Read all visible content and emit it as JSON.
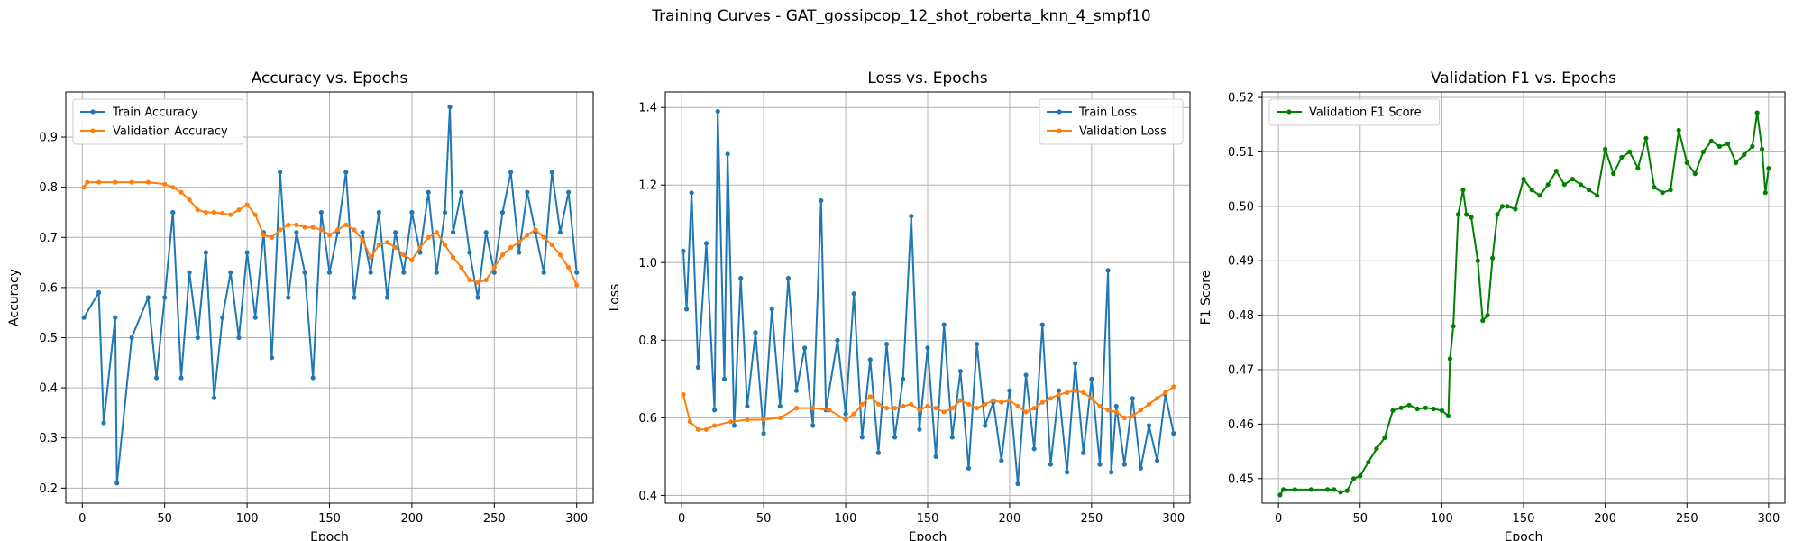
{
  "figure": {
    "suptitle": "Training Curves - GAT_gossipcop_12_shot_roberta_knn_4_smpf10"
  },
  "colors": {
    "train": "#1f77b4",
    "validation": "#ff7f0e",
    "f1": "#008000",
    "grid": "#b0b0b0"
  },
  "chart_data": [
    {
      "type": "line",
      "title": "Accuracy vs. Epochs",
      "xlabel": "Epoch",
      "ylabel": "Accuracy",
      "xlim": [
        -10,
        310
      ],
      "ylim": [
        0.17,
        0.99
      ],
      "xticks": [
        0,
        50,
        100,
        150,
        200,
        250,
        300
      ],
      "yticks": [
        0.2,
        0.3,
        0.4,
        0.5,
        0.6,
        0.7,
        0.8,
        0.9
      ],
      "grid": true,
      "legend": "upper-left",
      "series": [
        {
          "name": "Train Accuracy",
          "color_key": "train",
          "x": [
            1,
            10,
            13,
            20,
            21,
            30,
            40,
            45,
            50,
            55,
            60,
            65,
            70,
            75,
            80,
            85,
            90,
            95,
            100,
            105,
            110,
            115,
            120,
            125,
            130,
            135,
            140,
            145,
            150,
            155,
            160,
            165,
            170,
            175,
            180,
            185,
            190,
            195,
            200,
            205,
            210,
            215,
            220,
            223,
            225,
            230,
            235,
            240,
            245,
            250,
            255,
            260,
            265,
            270,
            275,
            280,
            285,
            290,
            295,
            300
          ],
          "values": [
            0.54,
            0.59,
            0.33,
            0.54,
            0.21,
            0.5,
            0.58,
            0.42,
            0.58,
            0.75,
            0.42,
            0.63,
            0.5,
            0.67,
            0.38,
            0.54,
            0.63,
            0.5,
            0.67,
            0.54,
            0.71,
            0.46,
            0.83,
            0.58,
            0.71,
            0.63,
            0.42,
            0.75,
            0.63,
            0.71,
            0.83,
            0.58,
            0.71,
            0.63,
            0.75,
            0.58,
            0.71,
            0.63,
            0.75,
            0.67,
            0.79,
            0.63,
            0.75,
            0.96,
            0.71,
            0.79,
            0.67,
            0.58,
            0.71,
            0.63,
            0.75,
            0.83,
            0.67,
            0.79,
            0.71,
            0.63,
            0.83,
            0.71,
            0.79,
            0.63
          ]
        },
        {
          "name": "Validation Accuracy",
          "color_key": "validation",
          "x": [
            1,
            3,
            10,
            20,
            30,
            40,
            50,
            55,
            60,
            65,
            70,
            75,
            80,
            85,
            90,
            95,
            100,
            105,
            110,
            115,
            120,
            125,
            130,
            135,
            140,
            145,
            150,
            155,
            160,
            165,
            170,
            175,
            180,
            185,
            190,
            195,
            200,
            205,
            210,
            215,
            220,
            225,
            230,
            235,
            240,
            245,
            250,
            255,
            260,
            265,
            270,
            275,
            280,
            285,
            290,
            295,
            300
          ],
          "values": [
            0.8,
            0.81,
            0.81,
            0.81,
            0.81,
            0.81,
            0.806,
            0.8,
            0.79,
            0.775,
            0.755,
            0.75,
            0.75,
            0.748,
            0.745,
            0.755,
            0.765,
            0.745,
            0.705,
            0.7,
            0.715,
            0.725,
            0.725,
            0.72,
            0.72,
            0.715,
            0.705,
            0.715,
            0.725,
            0.715,
            0.695,
            0.66,
            0.685,
            0.69,
            0.68,
            0.665,
            0.655,
            0.68,
            0.7,
            0.71,
            0.685,
            0.66,
            0.64,
            0.615,
            0.61,
            0.615,
            0.64,
            0.665,
            0.68,
            0.69,
            0.705,
            0.715,
            0.7,
            0.685,
            0.665,
            0.64,
            0.605
          ]
        }
      ]
    },
    {
      "type": "line",
      "title": "Loss vs. Epochs",
      "xlabel": "Epoch",
      "ylabel": "Loss",
      "xlim": [
        -10,
        310
      ],
      "ylim": [
        0.38,
        1.44
      ],
      "xticks": [
        0,
        50,
        100,
        150,
        200,
        250,
        300
      ],
      "yticks": [
        0.4,
        0.6,
        0.8,
        1.0,
        1.2,
        1.4
      ],
      "grid": true,
      "legend": "upper-right",
      "series": [
        {
          "name": "Train Loss",
          "color_key": "train",
          "x": [
            1,
            3,
            6,
            10,
            15,
            20,
            22,
            26,
            28,
            32,
            36,
            40,
            45,
            50,
            55,
            60,
            65,
            70,
            75,
            80,
            85,
            88,
            95,
            100,
            105,
            110,
            115,
            120,
            125,
            130,
            135,
            140,
            145,
            150,
            155,
            160,
            165,
            170,
            175,
            180,
            185,
            190,
            195,
            200,
            205,
            210,
            215,
            220,
            225,
            230,
            235,
            240,
            245,
            250,
            255,
            260,
            262,
            265,
            270,
            275,
            280,
            285,
            290,
            295,
            300
          ],
          "values": [
            1.03,
            0.88,
            1.18,
            0.73,
            1.05,
            0.62,
            1.39,
            0.7,
            1.28,
            0.58,
            0.96,
            0.63,
            0.82,
            0.56,
            0.88,
            0.63,
            0.96,
            0.67,
            0.78,
            0.58,
            1.16,
            0.62,
            0.8,
            0.61,
            0.92,
            0.55,
            0.75,
            0.51,
            0.79,
            0.55,
            0.7,
            1.12,
            0.57,
            0.78,
            0.5,
            0.84,
            0.55,
            0.72,
            0.47,
            0.79,
            0.58,
            0.64,
            0.49,
            0.67,
            0.43,
            0.71,
            0.52,
            0.84,
            0.48,
            0.67,
            0.46,
            0.74,
            0.51,
            0.7,
            0.48,
            0.98,
            0.46,
            0.63,
            0.48,
            0.65,
            0.47,
            0.58,
            0.49,
            0.66,
            0.56
          ]
        },
        {
          "name": "Validation Loss",
          "color_key": "validation",
          "x": [
            1,
            5,
            10,
            15,
            20,
            30,
            40,
            50,
            60,
            70,
            80,
            90,
            100,
            105,
            110,
            115,
            120,
            125,
            130,
            135,
            140,
            145,
            150,
            155,
            160,
            165,
            170,
            175,
            180,
            185,
            190,
            195,
            200,
            205,
            210,
            215,
            220,
            225,
            230,
            235,
            240,
            245,
            250,
            255,
            260,
            265,
            270,
            275,
            280,
            285,
            290,
            295,
            300
          ],
          "values": [
            0.66,
            0.59,
            0.57,
            0.57,
            0.58,
            0.59,
            0.595,
            0.595,
            0.6,
            0.625,
            0.625,
            0.62,
            0.595,
            0.61,
            0.635,
            0.655,
            0.635,
            0.625,
            0.625,
            0.63,
            0.635,
            0.62,
            0.63,
            0.625,
            0.615,
            0.625,
            0.645,
            0.635,
            0.625,
            0.635,
            0.645,
            0.64,
            0.645,
            0.63,
            0.615,
            0.625,
            0.64,
            0.65,
            0.66,
            0.665,
            0.67,
            0.665,
            0.65,
            0.63,
            0.62,
            0.615,
            0.6,
            0.605,
            0.62,
            0.635,
            0.65,
            0.665,
            0.68
          ]
        }
      ]
    },
    {
      "type": "line",
      "title": "Validation F1 vs. Epochs",
      "xlabel": "Epoch",
      "ylabel": "F1 Score",
      "xlim": [
        -10,
        310
      ],
      "ylim": [
        0.4455,
        0.521
      ],
      "xticks": [
        0,
        50,
        100,
        150,
        200,
        250,
        300
      ],
      "yticks": [
        0.45,
        0.46,
        0.47,
        0.48,
        0.49,
        0.5,
        0.51,
        0.52
      ],
      "grid": true,
      "legend": "upper-left",
      "series": [
        {
          "name": "Validation F1 Score",
          "color_key": "f1",
          "x": [
            1,
            3,
            10,
            20,
            30,
            34,
            38,
            42,
            46,
            50,
            55,
            60,
            65,
            70,
            75,
            80,
            85,
            90,
            95,
            100,
            104,
            105,
            107,
            110,
            113,
            115,
            118,
            122,
            125,
            128,
            131,
            134,
            137,
            140,
            145,
            150,
            155,
            160,
            165,
            170,
            175,
            180,
            185,
            190,
            195,
            200,
            205,
            210,
            215,
            220,
            225,
            230,
            235,
            240,
            245,
            250,
            255,
            260,
            265,
            270,
            275,
            280,
            285,
            290,
            293,
            296,
            298,
            300
          ],
          "values": [
            0.447,
            0.448,
            0.448,
            0.448,
            0.448,
            0.448,
            0.4475,
            0.4478,
            0.45,
            0.4505,
            0.453,
            0.4555,
            0.4575,
            0.4625,
            0.463,
            0.4635,
            0.4628,
            0.463,
            0.4628,
            0.4625,
            0.4615,
            0.472,
            0.478,
            0.4985,
            0.503,
            0.4985,
            0.498,
            0.49,
            0.479,
            0.48,
            0.4905,
            0.4985,
            0.5,
            0.5,
            0.4995,
            0.505,
            0.503,
            0.502,
            0.504,
            0.5065,
            0.504,
            0.505,
            0.504,
            0.503,
            0.502,
            0.5105,
            0.506,
            0.509,
            0.51,
            0.507,
            0.5125,
            0.5035,
            0.5025,
            0.503,
            0.514,
            0.508,
            0.506,
            0.51,
            0.512,
            0.511,
            0.5115,
            0.508,
            0.5095,
            0.511,
            0.5172,
            0.5105,
            0.5025,
            0.507
          ]
        }
      ]
    }
  ]
}
